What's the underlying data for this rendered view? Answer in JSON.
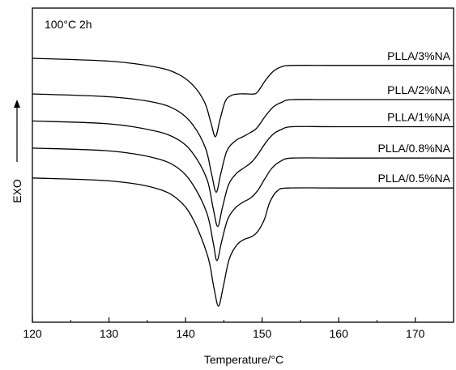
{
  "chart_data": {
    "type": "line",
    "title": "",
    "annotation": "100°C   2h",
    "xlabel": "Temperature/°C",
    "ylabel": "EXO",
    "xlim": [
      120,
      175
    ],
    "x_ticks": [
      120,
      130,
      140,
      150,
      160,
      170
    ],
    "x_tick_labels": [
      "120",
      "130",
      "140",
      "150",
      "160",
      "170"
    ],
    "y_ticks_shown": false,
    "y_units": "arbitrary (stacked DSC curves)",
    "ylim": [
      0,
      100
    ],
    "legend": "labels above each curve at right",
    "series": [
      {
        "name": "PLLA/3%NA",
        "x": [
          120,
          130,
          136,
          139,
          141,
          142.5,
          143.3,
          143.9,
          144.5,
          145.2,
          146,
          147,
          148,
          149,
          149.5,
          150.5,
          151.5,
          152.5,
          154,
          160,
          175
        ],
        "y": [
          87.5,
          86.5,
          84.5,
          82,
          78,
          72,
          65,
          60,
          66,
          72.5,
          74.5,
          75,
          75,
          75,
          76,
          80,
          83,
          84.5,
          85,
          85,
          85
        ]
      },
      {
        "name": "PLLA/2%NA",
        "x": [
          120,
          130,
          136,
          139,
          141,
          142.6,
          143.4,
          144,
          144.6,
          145.4,
          146.5,
          147.5,
          148.5,
          149.3,
          150.5,
          151.5,
          152.5,
          154,
          160,
          175
        ],
        "y": [
          75,
          74,
          72,
          69,
          64,
          56,
          47,
          40.5,
          47,
          55,
          58.5,
          60,
          61.5,
          63,
          67.5,
          70.5,
          72,
          73,
          73,
          73
        ]
      },
      {
        "name": "PLLA/1%NA",
        "x": [
          120,
          130,
          136,
          139,
          141,
          142.8,
          143.6,
          144.2,
          144.8,
          145.6,
          146.6,
          147.6,
          148.6,
          149.5,
          150.5,
          151.5,
          152.5,
          154,
          160,
          175
        ],
        "y": [
          65.5,
          64.5,
          62,
          59,
          54,
          45,
          35,
          28.5,
          35,
          43,
          47,
          49,
          51,
          54,
          58,
          61,
          62.5,
          63.5,
          63.5,
          63.5
        ]
      },
      {
        "name": "PLLA/0.8%NA",
        "x": [
          120,
          130,
          136,
          139,
          141,
          142.8,
          143.6,
          144.1,
          144.7,
          145.5,
          146.5,
          147.5,
          148.5,
          149.4,
          150.3,
          151.3,
          152.5,
          154,
          160,
          175
        ],
        "y": [
          56,
          55,
          52.5,
          49,
          43,
          33,
          23,
          16.5,
          23,
          31,
          35,
          37,
          38.5,
          41,
          45,
          49,
          51.5,
          52.5,
          52.5,
          52.5
        ]
      },
      {
        "name": "PLLA/0.5%NA",
        "x": [
          120,
          130,
          136,
          139,
          141,
          142.9,
          143.7,
          144.3,
          144.9,
          145.7,
          146.7,
          147.7,
          148.7,
          149.5,
          150.3,
          151,
          152,
          153.5,
          160,
          175
        ],
        "y": [
          45.5,
          44.5,
          42,
          38,
          31,
          18,
          7,
          0.5,
          7,
          17,
          22,
          24,
          25,
          27,
          31,
          37,
          41,
          42,
          42,
          42
        ]
      }
    ]
  }
}
